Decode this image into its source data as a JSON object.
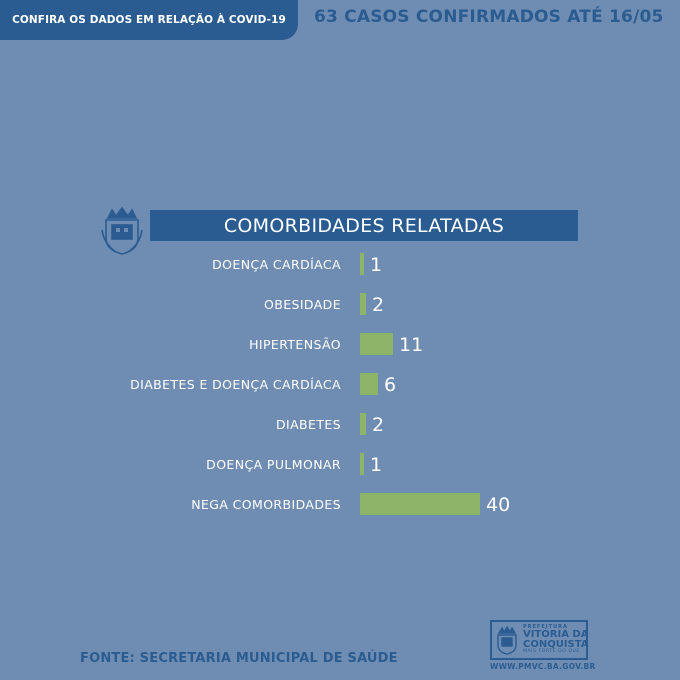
{
  "header": {
    "tab_text": "CONFIRA OS DADOS EM RELAÇÃO À COVID-19",
    "headline": "63 CASOS CONFIRMADOS ATÉ 16/05"
  },
  "footer": {
    "source": "FONTE: SECRETARIA MUNICIPAL DE SAÚDE",
    "logo_top": "PREFEITURA",
    "logo_line1": "VITÓRIA DA",
    "logo_line2": "CONQUISTA",
    "logo_tagline": "MAIS FORTE DO QUE",
    "url": "WWW.PMVC.BA.GOV.BR"
  },
  "colors": {
    "background": "#6f8db3",
    "accent_blue": "#2a5c91",
    "bar_green": "#8db56a",
    "text_white": "#ffffff"
  },
  "chart_data": {
    "type": "bar",
    "orientation": "horizontal",
    "title": "COMORBIDADES RELATADAS",
    "categories": [
      "DOENÇA CARDÍACA",
      "OBESIDADE",
      "HIPERTENSÃO",
      "DIABETES E DOENÇA CARDÍACA",
      "DIABETES",
      "DOENÇA PULMONAR",
      "NEGA COMORBIDADES"
    ],
    "values": [
      1,
      2,
      11,
      6,
      2,
      1,
      40
    ],
    "data_labels": [
      "1",
      "2",
      "11",
      "6",
      "2",
      "1",
      "40"
    ],
    "grid": false,
    "legend": "none"
  }
}
